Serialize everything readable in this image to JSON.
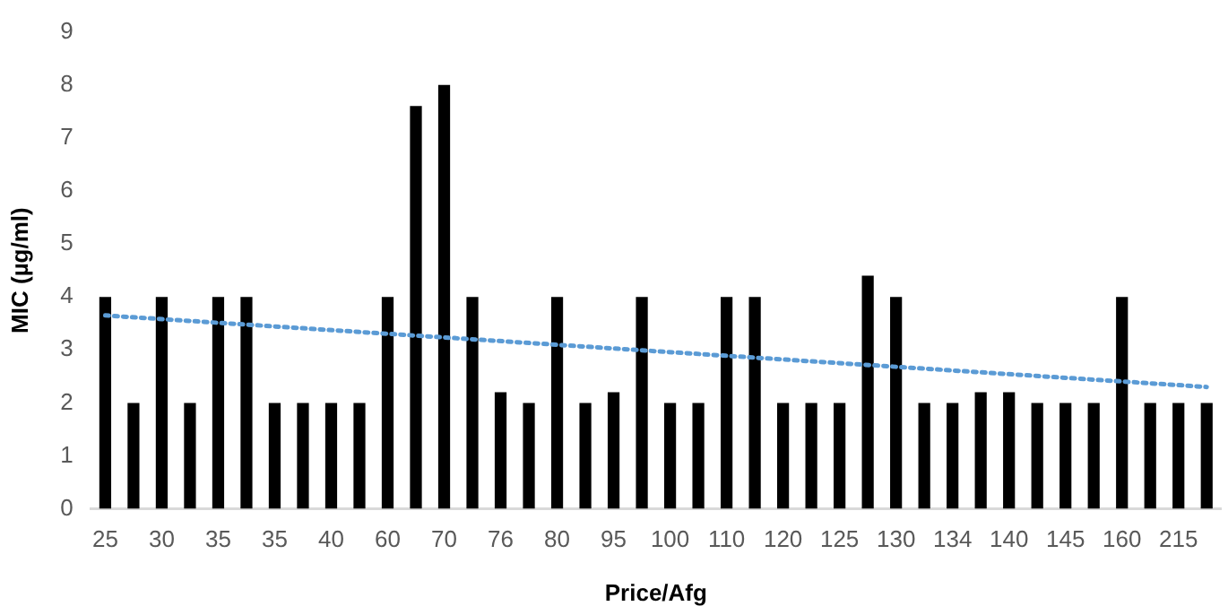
{
  "chart_data": {
    "type": "bar",
    "xlabel": "Price/Afg",
    "ylabel": "MIC (µg/ml)",
    "categories": [
      "25",
      null,
      "30",
      null,
      "35",
      null,
      "35",
      null,
      "40",
      null,
      "60",
      null,
      "70",
      null,
      "76",
      null,
      "80",
      null,
      "95",
      null,
      "100",
      null,
      "110",
      null,
      "120",
      null,
      "125",
      null,
      "130",
      null,
      "134",
      null,
      "140",
      null,
      "145",
      null,
      "160",
      null,
      "215",
      null
    ],
    "series": [
      {
        "color": "#000000",
        "values": [
          4,
          2,
          4,
          2,
          4,
          4,
          2,
          2,
          2,
          2,
          4,
          7.6,
          8,
          4,
          2.2,
          2,
          4,
          2,
          2.2,
          4,
          2,
          2,
          4,
          4,
          2,
          2,
          2,
          4.4,
          4,
          2,
          2,
          2.2,
          2.2,
          2,
          2,
          2,
          4,
          2,
          2,
          2
        ]
      },
      {
        "type": "line",
        "color": "#5b9bd5",
        "line_style": "dotted",
        "marker": "none",
        "values": [
          3.65,
          null,
          null,
          null,
          null,
          null,
          null,
          null,
          null,
          null,
          null,
          null,
          null,
          null,
          null,
          null,
          null,
          null,
          null,
          null,
          null,
          null,
          null,
          null,
          null,
          null,
          null,
          null,
          null,
          null,
          null,
          null,
          null,
          null,
          null,
          null,
          null,
          null,
          null,
          2.3
        ]
      }
    ],
    "ylim": [
      0,
      9
    ],
    "yticks": [
      0,
      1,
      2,
      3,
      4,
      5,
      6,
      7,
      8,
      9
    ],
    "grid": false,
    "legend": false
  }
}
